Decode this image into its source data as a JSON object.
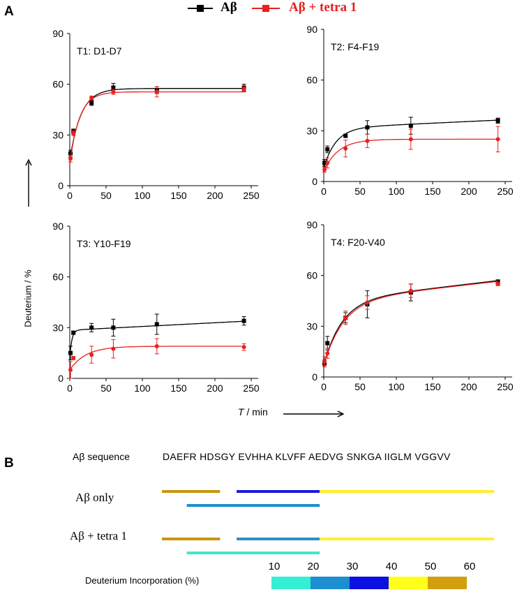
{
  "panel_labels": {
    "a": "A",
    "b": "B"
  },
  "legend": {
    "series1": {
      "name": "Aβ",
      "color": "#000000"
    },
    "series2": {
      "name": "Aβ + tetra 1",
      "color": "#e8201f"
    }
  },
  "axes": {
    "ylabel": "Deuterium / %",
    "xlabel_italic": "T",
    "xlabel_rest": " / min"
  },
  "chart_data": [
    {
      "type": "line",
      "title": "T1: D1-D7",
      "xlim": [
        0,
        250
      ],
      "ylim": [
        0,
        90
      ],
      "xticks": [
        0,
        50,
        100,
        150,
        200,
        250
      ],
      "yticks": [
        0,
        30,
        60,
        90
      ],
      "series": [
        {
          "name": "Aβ",
          "color": "#000000",
          "x": [
            1,
            5,
            30,
            60,
            120,
            240
          ],
          "y": [
            19,
            32,
            49,
            58,
            56.5,
            58
          ],
          "err": [
            2,
            1.5,
            1.5,
            2.5,
            2,
            2
          ],
          "fit": {
            "plateau": 57.5,
            "rate": 0.065,
            "offset": 15
          }
        },
        {
          "name": "Aβ + tetra 1",
          "color": "#e8201f",
          "x": [
            1,
            5,
            30,
            60,
            120,
            240
          ],
          "y": [
            16,
            31,
            52,
            55.5,
            55.5,
            57
          ],
          "err": [
            2,
            1.5,
            1,
            1.5,
            3,
            1.5
          ],
          "fit": {
            "plateau": 55.5,
            "rate": 0.075,
            "offset": 13
          }
        }
      ]
    },
    {
      "type": "line",
      "title": "T2: F4-F19",
      "xlim": [
        0,
        250
      ],
      "ylim": [
        0,
        90
      ],
      "xticks": [
        0,
        50,
        100,
        150,
        200,
        250
      ],
      "yticks": [
        0,
        30,
        60,
        90
      ],
      "series": [
        {
          "name": "Aβ",
          "color": "#000000",
          "x": [
            1,
            5,
            30,
            60,
            120,
            240
          ],
          "y": [
            11,
            19,
            27,
            32,
            33,
            36
          ],
          "err": [
            2,
            2,
            1,
            4,
            5,
            1.5
          ],
          "fit": {
            "plateau": 31.5,
            "rate": 0.06,
            "offset": 8,
            "slope": 0.02
          }
        },
        {
          "name": "Aβ + tetra 1",
          "color": "#e8201f",
          "x": [
            1,
            5,
            30,
            60,
            120,
            240
          ],
          "y": [
            7,
            11,
            19.5,
            24,
            25,
            25
          ],
          "err": [
            1.5,
            3,
            5,
            4,
            6,
            7.5
          ],
          "fit": {
            "plateau": 25,
            "rate": 0.05,
            "offset": 6
          }
        }
      ]
    },
    {
      "type": "line",
      "title": "T3: Y10-F19",
      "xlim": [
        0,
        250
      ],
      "ylim": [
        0,
        90
      ],
      "xticks": [
        0,
        50,
        100,
        150,
        200,
        250
      ],
      "yticks": [
        0,
        30,
        60,
        90
      ],
      "series": [
        {
          "name": "Aβ",
          "color": "#000000",
          "x": [
            1,
            5,
            30,
            60,
            120,
            240
          ],
          "y": [
            15,
            27,
            30,
            30,
            32,
            34
          ],
          "err": [
            4,
            1,
            2.5,
            5,
            6,
            2.5
          ],
          "fit": {
            "plateau": 28.5,
            "rate": 0.35,
            "offset": 12,
            "slope": 0.022
          }
        },
        {
          "name": "Aβ + tetra 1",
          "color": "#e8201f",
          "x": [
            1,
            5,
            30,
            60,
            120,
            240
          ],
          "y": [
            5,
            12,
            14,
            17.5,
            19,
            18.5
          ],
          "err": [
            5,
            1,
            5,
            5.5,
            4.5,
            2
          ],
          "fit": {
            "plateau": 19,
            "rate": 0.045,
            "offset": 5
          }
        }
      ]
    },
    {
      "type": "line",
      "title": "T4: F20-V40",
      "xlim": [
        0,
        250
      ],
      "ylim": [
        0,
        90
      ],
      "xticks": [
        0,
        50,
        100,
        150,
        200,
        250
      ],
      "yticks": [
        0,
        30,
        60,
        90
      ],
      "series": [
        {
          "name": "Aβ",
          "color": "#000000",
          "x": [
            1,
            5,
            30,
            60,
            120,
            240
          ],
          "y": [
            8,
            20,
            35,
            43,
            50,
            56
          ],
          "err": [
            2,
            4,
            3,
            8,
            5,
            1.5
          ],
          "fit": {
            "plateau": 45,
            "rate": 0.04,
            "offset": 7,
            "slope": 0.05
          }
        },
        {
          "name": "Aβ + tetra 1",
          "color": "#e8201f",
          "x": [
            1,
            5,
            30,
            60,
            120,
            240
          ],
          "y": [
            9,
            14,
            35,
            44,
            51,
            55
          ],
          "err": [
            3,
            3,
            4,
            4,
            4,
            1
          ],
          "fit": {
            "plateau": 45,
            "rate": 0.037,
            "offset": 7,
            "slope": 0.048
          }
        }
      ]
    }
  ],
  "sequence": {
    "label": "Aβ sequence",
    "text": "DAEFR HDSGY EVHHA KLVFF AEDVG SNKGA IIGLM VGGVV"
  },
  "coverage_rows": [
    {
      "label": "Aβ only",
      "bars": [
        {
          "start": 1,
          "end": 7,
          "color": "#c8960f",
          "level": 1
        },
        {
          "start": 10,
          "end": 19,
          "color": "#1a1adc",
          "level": 1
        },
        {
          "start": 20,
          "end": 40,
          "color": "#ffef2a",
          "level": 1
        },
        {
          "start": 4,
          "end": 19,
          "color": "#1a8fd0",
          "level": 2
        }
      ]
    },
    {
      "label": "Aβ + tetra 1",
      "bars": [
        {
          "start": 1,
          "end": 7,
          "color": "#c8960f",
          "level": 1
        },
        {
          "start": 10,
          "end": 19,
          "color": "#2b8fc8",
          "level": 1
        },
        {
          "start": 20,
          "end": 40,
          "color": "#ffef2a",
          "level": 1
        },
        {
          "start": 4,
          "end": 19,
          "color": "#3de8cc",
          "level": 2
        }
      ]
    }
  ],
  "scale": {
    "label": "Deuterium Incorporation (%)",
    "ticks": [
      "10",
      "20",
      "30",
      "40",
      "50",
      "60"
    ],
    "colors": [
      "#33f0d4",
      "#1b8fcf",
      "#0c10e0",
      "#ffff1a",
      "#d2a00e"
    ]
  }
}
